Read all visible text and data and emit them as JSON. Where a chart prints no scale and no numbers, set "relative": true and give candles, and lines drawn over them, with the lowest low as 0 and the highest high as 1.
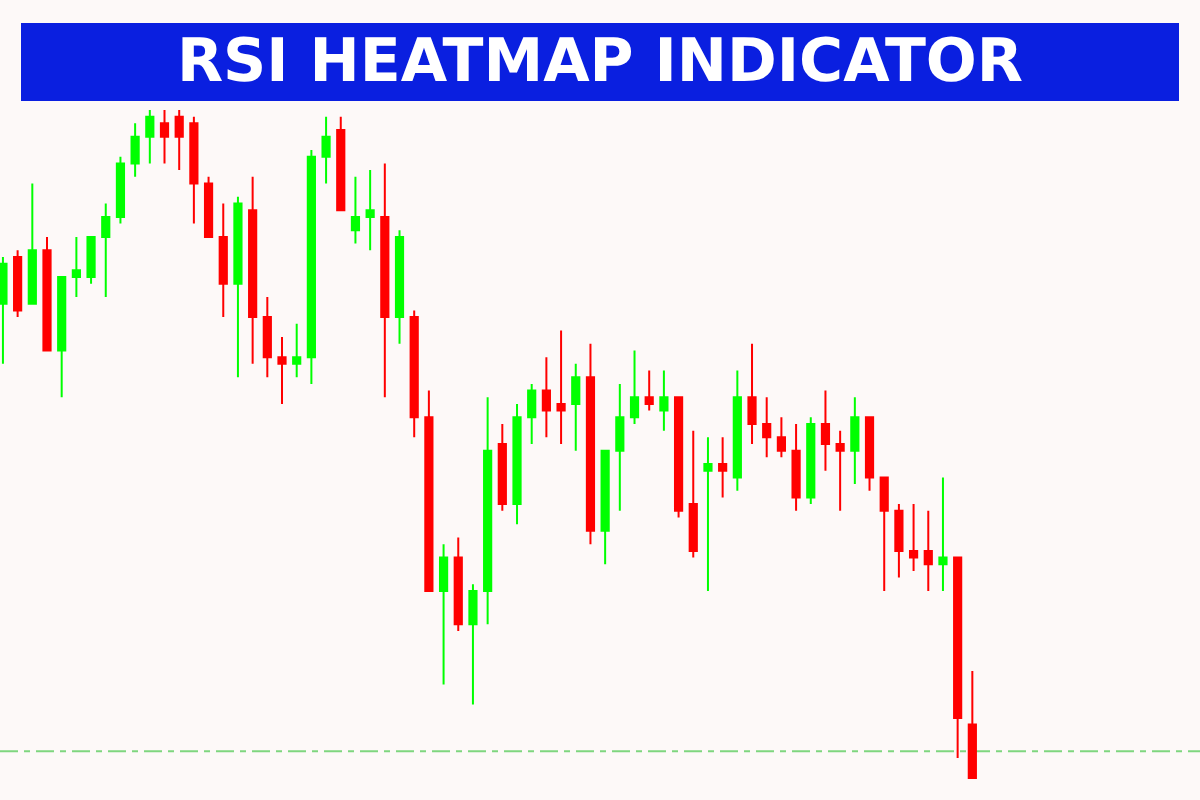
{
  "chart_data": {
    "type": "candlestick",
    "title": "RSI HEATMAP INDICATOR",
    "relative": true,
    "categories": [
      null,
      null,
      null,
      null,
      null,
      null,
      null,
      null,
      null,
      null,
      null,
      null,
      null,
      null,
      null,
      null,
      null,
      null,
      null,
      null,
      null,
      null,
      null,
      null,
      null,
      null,
      null,
      null,
      null,
      null,
      null,
      null,
      null,
      null,
      null,
      null,
      null,
      null,
      null,
      null,
      null,
      null,
      null,
      null,
      null,
      null,
      null,
      null,
      null,
      null,
      null,
      null,
      null,
      null,
      null,
      null,
      null,
      null,
      null,
      null,
      null,
      null,
      null,
      null,
      null,
      null,
      null
    ],
    "ohlc": [
      [
        0.71,
        0.78,
        0.62,
        0.77
      ],
      [
        0.78,
        0.79,
        0.69,
        0.7
      ],
      [
        0.71,
        0.89,
        0.71,
        0.79
      ],
      [
        0.79,
        0.81,
        0.64,
        0.64
      ],
      [
        0.64,
        0.75,
        0.57,
        0.75
      ],
      [
        0.75,
        0.81,
        0.72,
        0.76
      ],
      [
        0.75,
        0.81,
        0.74,
        0.81
      ],
      [
        0.81,
        0.86,
        0.72,
        0.84
      ],
      [
        0.84,
        0.93,
        0.83,
        0.92
      ],
      [
        0.92,
        0.98,
        0.9,
        0.96
      ],
      [
        0.96,
        1.0,
        0.92,
        0.99
      ],
      [
        0.98,
        1.0,
        0.92,
        0.96
      ],
      [
        0.99,
        1.0,
        0.91,
        0.96
      ],
      [
        0.98,
        0.99,
        0.83,
        0.89
      ],
      [
        0.89,
        0.9,
        0.81,
        0.81
      ],
      [
        0.81,
        0.86,
        0.69,
        0.74
      ],
      [
        0.74,
        0.87,
        0.6,
        0.86
      ],
      [
        0.85,
        0.9,
        0.62,
        0.69
      ],
      [
        0.69,
        0.72,
        0.6,
        0.63
      ],
      [
        0.63,
        0.66,
        0.56,
        0.62
      ],
      [
        0.62,
        0.68,
        0.6,
        0.63
      ],
      [
        0.63,
        0.94,
        0.59,
        0.93
      ],
      [
        0.93,
        0.99,
        0.89,
        0.96
      ],
      [
        0.97,
        0.99,
        0.85,
        0.85
      ],
      [
        0.82,
        0.9,
        0.8,
        0.84
      ],
      [
        0.84,
        0.91,
        0.79,
        0.85
      ],
      [
        0.84,
        0.92,
        0.57,
        0.69
      ],
      [
        0.69,
        0.82,
        0.65,
        0.81
      ],
      [
        0.69,
        0.7,
        0.51,
        0.54
      ],
      [
        0.54,
        0.58,
        0.28,
        0.28
      ],
      [
        0.28,
        0.35,
        0.14,
        0.33
      ],
      [
        0.33,
        0.36,
        0.22,
        0.23
      ],
      [
        0.23,
        0.29,
        0.11,
        0.28
      ],
      [
        0.28,
        0.57,
        0.23,
        0.49
      ],
      [
        0.5,
        0.53,
        0.4,
        0.41
      ],
      [
        0.41,
        0.56,
        0.38,
        0.54
      ],
      [
        0.54,
        0.59,
        0.5,
        0.58
      ],
      [
        0.58,
        0.63,
        0.51,
        0.55
      ],
      [
        0.56,
        0.67,
        0.5,
        0.55
      ],
      [
        0.56,
        0.62,
        0.49,
        0.6
      ],
      [
        0.6,
        0.65,
        0.35,
        0.37
      ],
      [
        0.37,
        0.49,
        0.32,
        0.49
      ],
      [
        0.49,
        0.59,
        0.4,
        0.54
      ],
      [
        0.54,
        0.64,
        0.53,
        0.57
      ],
      [
        0.57,
        0.61,
        0.55,
        0.56
      ],
      [
        0.55,
        0.61,
        0.52,
        0.57
      ],
      [
        0.57,
        0.57,
        0.39,
        0.4
      ],
      [
        0.41,
        0.52,
        0.33,
        0.34
      ],
      [
        0.46,
        0.51,
        0.28,
        0.47
      ],
      [
        0.47,
        0.51,
        0.42,
        0.46
      ],
      [
        0.45,
        0.61,
        0.43,
        0.57
      ],
      [
        0.57,
        0.65,
        0.5,
        0.53
      ],
      [
        0.53,
        0.57,
        0.48,
        0.51
      ],
      [
        0.51,
        0.54,
        0.48,
        0.49
      ],
      [
        0.49,
        0.53,
        0.4,
        0.42
      ],
      [
        0.42,
        0.54,
        0.41,
        0.53
      ],
      [
        0.53,
        0.58,
        0.46,
        0.5
      ],
      [
        0.5,
        0.52,
        0.4,
        0.49
      ],
      [
        0.49,
        0.57,
        0.44,
        0.54
      ],
      [
        0.54,
        0.54,
        0.43,
        0.45
      ],
      [
        0.45,
        0.45,
        0.28,
        0.4
      ],
      [
        0.4,
        0.41,
        0.3,
        0.34
      ],
      [
        0.34,
        0.41,
        0.31,
        0.33
      ],
      [
        0.34,
        0.4,
        0.28,
        0.32
      ],
      [
        0.32,
        0.45,
        0.28,
        0.33
      ],
      [
        0.33,
        0.33,
        0.03,
        0.09
      ],
      [
        0.08,
        0.16,
        0.0,
        0.0
      ]
    ],
    "colors": [
      "#00ff00",
      "#ff0000",
      "#00ff00",
      "#ff0000",
      "#00ff00",
      "#00ff00",
      "#00ff00",
      "#00ff00",
      "#00ff00",
      "#00ff00",
      "#00ff00",
      "#ff0000",
      "#ff0000",
      "#ff0000",
      "#ff0000",
      "#ff0000",
      "#00ff00",
      "#ff0000",
      "#ff0000",
      "#ff0000",
      "#00ff00",
      "#00ff00",
      "#00ff00",
      "#ff0000",
      "#00ff00",
      "#00ff00",
      "#ff0000",
      "#00ff00",
      "#ff0000",
      "#ff0000",
      "#00ff00",
      "#ff0000",
      "#00ff00",
      "#00ff00",
      "#ff0000",
      "#00ff00",
      "#00ff00",
      "#ff0000",
      "#ff0000",
      "#00ff00",
      "#ff0000",
      "#00ff00",
      "#00ff00",
      "#00ff00",
      "#ff0000",
      "#00ff00",
      "#ff0000",
      "#ff0000",
      "#00ff00",
      "#ff0000",
      "#00ff00",
      "#ff0000",
      "#ff0000",
      "#ff0000",
      "#ff0000",
      "#00ff00",
      "#ff0000",
      "#ff0000",
      "#00ff00",
      "#ff0000",
      "#ff0000",
      "#ff0000",
      "#ff0000",
      "#ff0000",
      "#00ff00",
      "#ff0000",
      "#ff0000"
    ],
    "ref_lines": [
      {
        "axis": "y",
        "value": 0.04,
        "color": "#7fd67f",
        "line_style": "dashed"
      }
    ]
  }
}
